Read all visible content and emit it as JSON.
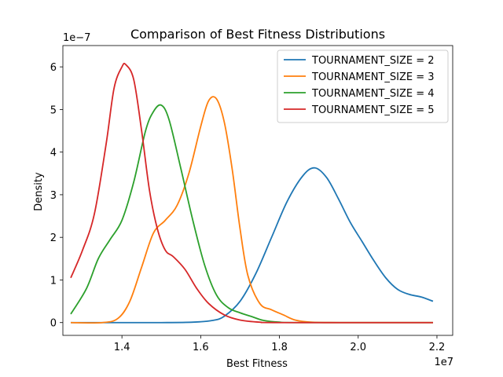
{
  "chart_data": {
    "type": "line",
    "title": "Comparison of Best Fitness Distributions",
    "xlabel": "Best Fitness",
    "ylabel": "Density",
    "x_offset_label": "1e7",
    "y_offset_label": "1e−7",
    "xlim": [
      1.25,
      2.24
    ],
    "ylim": [
      -0.3,
      6.5
    ],
    "xticks": [
      1.4,
      1.6,
      1.8,
      2.0,
      2.2
    ],
    "xtick_labels": [
      "1.4",
      "1.6",
      "1.8",
      "2.0",
      "2.2"
    ],
    "yticks": [
      0,
      1,
      2,
      3,
      4,
      5,
      6
    ],
    "ytick_labels": [
      "0",
      "1",
      "2",
      "3",
      "4",
      "5",
      "6"
    ],
    "grid": false,
    "legend_position": "top-right",
    "series": [
      {
        "name": "TOURNAMENT_SIZE = 2",
        "color": "#1f77b4",
        "x": [
          1.27,
          1.4,
          1.5,
          1.58,
          1.63,
          1.66,
          1.7,
          1.74,
          1.78,
          1.82,
          1.86,
          1.89,
          1.92,
          1.95,
          1.98,
          2.01,
          2.04,
          2.07,
          2.1,
          2.13,
          2.16,
          2.19
        ],
        "y": [
          0.0,
          0.0,
          0.0,
          0.01,
          0.05,
          0.15,
          0.5,
          1.15,
          2.0,
          2.85,
          3.45,
          3.63,
          3.4,
          2.9,
          2.35,
          1.9,
          1.45,
          1.05,
          0.78,
          0.66,
          0.6,
          0.5
        ]
      },
      {
        "name": "TOURNAMENT_SIZE = 3",
        "color": "#ff7f0e",
        "x": [
          1.27,
          1.35,
          1.39,
          1.42,
          1.45,
          1.48,
          1.51,
          1.54,
          1.57,
          1.6,
          1.62,
          1.64,
          1.66,
          1.68,
          1.7,
          1.72,
          1.75,
          1.78,
          1.81,
          1.84,
          1.88,
          1.95,
          2.19
        ],
        "y": [
          0.0,
          0.0,
          0.1,
          0.5,
          1.3,
          2.1,
          2.4,
          2.75,
          3.5,
          4.6,
          5.2,
          5.25,
          4.7,
          3.6,
          2.2,
          1.1,
          0.45,
          0.3,
          0.18,
          0.06,
          0.01,
          0.0,
          0.0
        ]
      },
      {
        "name": "TOURNAMENT_SIZE = 4",
        "color": "#2ca02c",
        "x": [
          1.27,
          1.31,
          1.34,
          1.37,
          1.4,
          1.43,
          1.46,
          1.48,
          1.5,
          1.52,
          1.55,
          1.58,
          1.61,
          1.64,
          1.67,
          1.7,
          1.73,
          1.76,
          1.8,
          1.85,
          2.19
        ],
        "y": [
          0.2,
          0.8,
          1.5,
          1.95,
          2.4,
          3.3,
          4.5,
          4.95,
          5.1,
          4.75,
          3.6,
          2.4,
          1.35,
          0.65,
          0.35,
          0.23,
          0.14,
          0.05,
          0.01,
          0.0,
          0.0
        ]
      },
      {
        "name": "TOURNAMENT_SIZE = 5",
        "color": "#d62728",
        "x": [
          1.27,
          1.3,
          1.33,
          1.36,
          1.38,
          1.4,
          1.41,
          1.43,
          1.45,
          1.47,
          1.49,
          1.51,
          1.53,
          1.56,
          1.59,
          1.62,
          1.66,
          1.7,
          1.75,
          1.8,
          2.19
        ],
        "y": [
          1.05,
          1.7,
          2.55,
          4.2,
          5.5,
          6.0,
          6.05,
          5.7,
          4.5,
          3.1,
          2.2,
          1.7,
          1.55,
          1.25,
          0.8,
          0.45,
          0.18,
          0.06,
          0.01,
          0.0,
          0.0
        ]
      }
    ]
  }
}
